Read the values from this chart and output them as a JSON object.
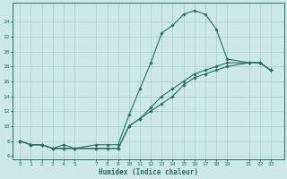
{
  "bg_color": "#cce8e8",
  "grid_color": "#aacccc",
  "line_color": "#2d6b65",
  "xlabel": "Humidex (Indice chaleur)",
  "ylim": [
    5.5,
    26.5
  ],
  "xlim": [
    -0.7,
    24.2
  ],
  "yticks": [
    6,
    8,
    10,
    12,
    14,
    16,
    18,
    20,
    22,
    24
  ],
  "xticks": [
    0,
    1,
    2,
    3,
    4,
    5,
    7,
    8,
    9,
    10,
    11,
    12,
    13,
    14,
    15,
    16,
    17,
    18,
    19,
    21,
    22,
    23
  ],
  "line1_x": [
    0,
    1,
    2,
    3,
    4,
    5,
    7,
    8,
    9,
    10,
    11,
    12,
    13,
    14,
    15,
    16,
    17,
    18,
    19,
    21,
    22,
    23
  ],
  "line1_y": [
    8,
    7.5,
    7.5,
    7,
    7.5,
    7,
    7.5,
    7.5,
    7.5,
    11.5,
    15,
    18.5,
    22.5,
    23.5,
    25,
    25.5,
    25,
    23,
    19,
    18.5,
    18.5,
    17.5
  ],
  "line2_x": [
    0,
    1,
    2,
    3,
    4,
    5,
    7,
    8,
    9,
    10,
    11,
    12,
    13,
    14,
    15,
    16,
    17,
    18,
    19,
    21,
    22,
    23
  ],
  "line2_y": [
    8,
    7.5,
    7.5,
    7,
    7,
    7,
    7,
    7,
    7,
    10,
    11,
    12.5,
    14,
    15,
    16,
    17,
    17.5,
    18,
    18.5,
    18.5,
    18.5,
    17.5
  ],
  "line3_x": [
    0,
    1,
    2,
    3,
    4,
    5,
    7,
    8,
    9,
    10,
    11,
    12,
    13,
    14,
    15,
    16,
    17,
    18,
    19,
    21,
    22,
    23
  ],
  "line3_y": [
    8,
    7.5,
    7.5,
    7,
    7,
    7,
    7,
    7,
    7,
    10,
    11,
    12,
    13,
    14,
    15.5,
    16.5,
    17,
    17.5,
    18,
    18.5,
    18.5,
    17.5
  ],
  "marker_size": 1.8,
  "line_width": 0.8,
  "tick_fontsize": 4.5,
  "xlabel_fontsize": 5.5
}
